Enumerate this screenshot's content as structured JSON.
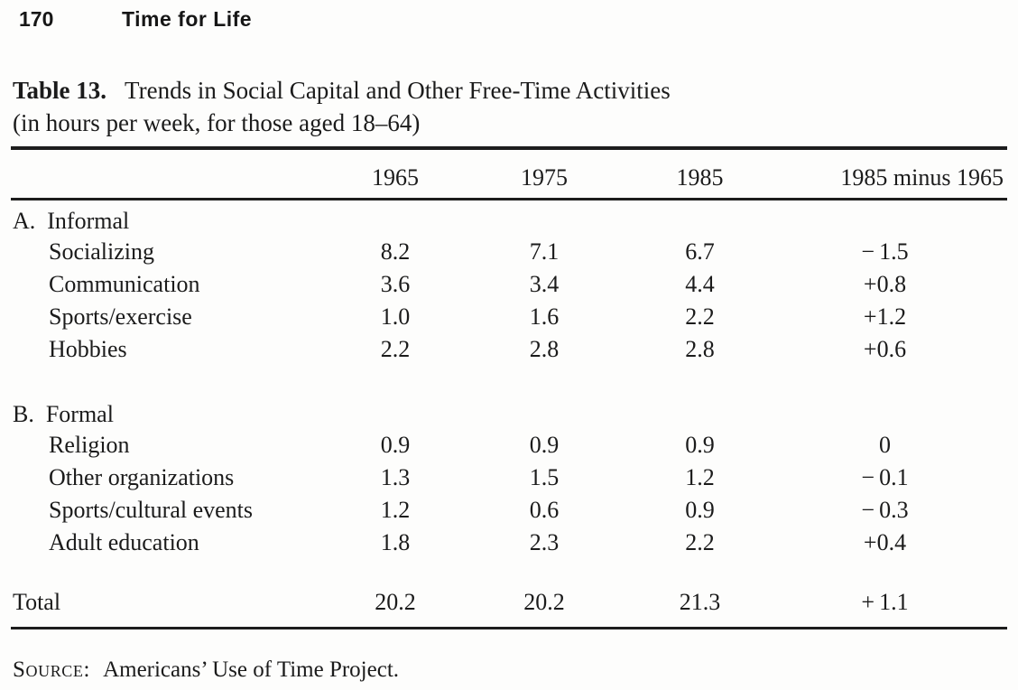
{
  "page": {
    "page_number": "170",
    "book_title": "Time for Life"
  },
  "table": {
    "caption_label": "Table 13.",
    "caption_title": "Trends in Social Capital and Other Free-Time Activities",
    "caption_subtitle": "(in hours per week, for those aged 18–64)",
    "columns": [
      "1965",
      "1975",
      "1985",
      "1985 minus 1965"
    ],
    "sections": [
      {
        "header": "A.  Informal",
        "rows": [
          {
            "label": "Socializing",
            "values": [
              "8.2",
              "7.1",
              "6.7",
              "− 1.5"
            ]
          },
          {
            "label": "Communication",
            "values": [
              "3.6",
              "3.4",
              "4.4",
              "+0.8"
            ]
          },
          {
            "label": "Sports/exercise",
            "values": [
              "1.0",
              "1.6",
              "2.2",
              "+1.2"
            ]
          },
          {
            "label": "Hobbies",
            "values": [
              "2.2",
              "2.8",
              "2.8",
              "+0.6"
            ]
          }
        ]
      },
      {
        "header": "B.  Formal",
        "rows": [
          {
            "label": "Religion",
            "values": [
              "0.9",
              "0.9",
              "0.9",
              "0"
            ]
          },
          {
            "label": "Other organizations",
            "values": [
              "1.3",
              "1.5",
              "1.2",
              "− 0.1"
            ]
          },
          {
            "label": "Sports/cultural events",
            "values": [
              "1.2",
              "0.6",
              "0.9",
              "− 0.3"
            ]
          },
          {
            "label": "Adult education",
            "values": [
              "1.8",
              "2.3",
              "2.2",
              "+0.4"
            ]
          }
        ]
      }
    ],
    "total": {
      "label": "Total",
      "values": [
        "20.2",
        "20.2",
        "21.3",
        "+ 1.1"
      ]
    }
  },
  "source": {
    "label": "Source:",
    "text": "Americans’ Use of Time Project."
  }
}
